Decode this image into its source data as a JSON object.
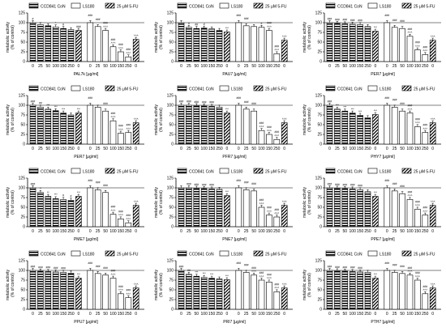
{
  "legend": {
    "items": [
      {
        "label": "CCD841 CoN",
        "pattern": "hstripe"
      },
      {
        "label": "LS180",
        "pattern": "white"
      },
      {
        "label": "25 μM 5-FU",
        "pattern": "diag"
      }
    ]
  },
  "x_ticks": [
    "0",
    "25",
    "50",
    "100",
    "150",
    "250",
    "0",
    "0",
    "25",
    "50",
    "100",
    "150",
    "250",
    "0"
  ],
  "y_ticks": [
    "0",
    "25",
    "50",
    "75",
    "100",
    "125"
  ],
  "ylabel_lines": [
    "metabolic activity",
    "(% of control)"
  ],
  "colors": {
    "ccd_fill": "#d4d4d4",
    "ls_fill": "#ffffff",
    "stroke": "#000000"
  },
  "chart_data": [
    {
      "type": "bar",
      "xlabel": "PAL7k [µg/ml]",
      "ylim": [
        0,
        125
      ],
      "series": [
        {
          "name": "CCD841 CoN",
          "values": [
            100,
            95,
            92,
            89,
            85,
            82
          ]
        },
        {
          "name": "25 μM 5-FU",
          "values": [
            80,
            57
          ]
        },
        {
          "name": "LS180",
          "values": [
            100,
            90,
            80,
            38,
            25,
            12
          ]
        }
      ],
      "marks": [
        [
          "",
          "#"
        ],
        [
          "",
          ""
        ],
        [
          "",
          ""
        ],
        [
          "",
          "*"
        ],
        [
          "",
          "#"
        ],
        [
          "",
          ""
        ],
        [
          "",
          "###"
        ],
        [
          "###",
          ""
        ],
        [
          "###",
          ""
        ],
        [
          "###",
          "˄˄˄"
        ],
        [
          "###",
          "˄˄˄"
        ],
        [
          "###",
          "˄˄˄"
        ],
        [
          "###",
          "˄˄˄"
        ],
        [
          "",
          "˄˄˄"
        ]
      ]
    },
    {
      "type": "bar",
      "xlabel": "PAU7 [µg/ml]",
      "ylim": [
        0,
        125
      ],
      "series": [
        {
          "name": "CCD841 CoN",
          "values": [
            100,
            88,
            85,
            86,
            84,
            80
          ]
        },
        {
          "name": "25 μM 5-FU",
          "values": [
            76,
            55
          ]
        },
        {
          "name": "LS180",
          "values": [
            100,
            92,
            90,
            88,
            80,
            20
          ]
        }
      ],
      "marks": [
        [
          "",
          ""
        ],
        [
          "",
          "#"
        ],
        [
          "",
          "##"
        ],
        [
          "",
          "#"
        ],
        [
          "",
          ""
        ],
        [
          "",
          ""
        ],
        [
          "",
          "***"
        ],
        [
          "###",
          ""
        ],
        [
          "###",
          ""
        ],
        [
          "",
          ""
        ],
        [
          "",
          "#"
        ],
        [
          "###",
          "˄˄˄"
        ],
        [
          "###",
          "˄˄˄"
        ],
        [
          "",
          "˄˄˄"
        ]
      ]
    },
    {
      "type": "bar",
      "xlabel": "PER7 [µg/ml]",
      "ylim": [
        0,
        125
      ],
      "series": [
        {
          "name": "CCD841 CoN",
          "values": [
            100,
            98,
            97,
            96,
            95,
            90
          ]
        },
        {
          "name": "25 μM 5-FU",
          "values": [
            78,
            55
          ]
        },
        {
          "name": "LS180",
          "values": [
            100,
            88,
            85,
            65,
            30,
            18
          ]
        }
      ],
      "marks": [
        [
          "",
          "###"
        ],
        [
          "",
          "###"
        ],
        [
          "",
          "###"
        ],
        [
          "",
          "###"
        ],
        [
          "",
          "###"
        ],
        [
          "",
          ""
        ],
        [
          "",
          "***"
        ],
        [
          "###",
          ""
        ],
        [
          "###",
          ""
        ],
        [
          "###",
          ""
        ],
        [
          "###",
          "˄˄˄"
        ],
        [
          "###",
          "˄˄˄"
        ],
        [
          "###",
          "˄˄˄"
        ],
        [
          "",
          "˄˄˄"
        ]
      ]
    },
    {
      "type": "bar",
      "xlabel": "PER7 [µg/ml]",
      "ylim": [
        0,
        125
      ],
      "series": [
        {
          "name": "CCD841 CoN",
          "values": [
            100,
            95,
            90,
            86,
            80,
            75
          ]
        },
        {
          "name": "25 μM 5-FU",
          "values": [
            80,
            55
          ]
        },
        {
          "name": "LS180",
          "values": [
            100,
            95,
            85,
            60,
            28,
            30
          ]
        }
      ],
      "marks": [
        [
          "",
          "###"
        ],
        [
          "",
          "##"
        ],
        [
          "",
          "***"
        ],
        [
          "",
          "***"
        ],
        [
          "",
          "***"
        ],
        [
          "",
          ""
        ],
        [
          "",
          "***"
        ],
        [
          "###",
          ""
        ],
        [
          "",
          ""
        ],
        [
          "###",
          ""
        ],
        [
          "###",
          "˄˄˄"
        ],
        [
          "###",
          "˄˄˄"
        ],
        [
          "###",
          "˄˄˄"
        ],
        [
          "",
          "˄˄˄"
        ]
      ]
    },
    {
      "type": "bar",
      "xlabel": "PFR7 [µg/ml]",
      "ylim": [
        0,
        125
      ],
      "series": [
        {
          "name": "CCD841 CoN",
          "values": [
            100,
            100,
            99,
            98,
            97,
            95
          ]
        },
        {
          "name": "25 μM 5-FU",
          "values": [
            80,
            55
          ]
        },
        {
          "name": "LS180",
          "values": [
            100,
            90,
            85,
            35,
            25,
            12
          ]
        }
      ],
      "marks": [
        [
          "",
          "###"
        ],
        [
          "",
          "###"
        ],
        [
          "",
          "###"
        ],
        [
          "",
          "###"
        ],
        [
          "",
          "###"
        ],
        [
          "",
          ""
        ],
        [
          "",
          "***"
        ],
        [
          "###",
          ""
        ],
        [
          "###",
          ""
        ],
        [
          "###",
          ""
        ],
        [
          "###",
          "˄˄˄"
        ],
        [
          "###",
          "˄˄˄"
        ],
        [
          "###",
          "˄˄˄"
        ],
        [
          "",
          "˄˄˄"
        ]
      ]
    },
    {
      "type": "bar",
      "xlabel": "PHY7 [µg/ml]",
      "ylim": [
        0,
        125
      ],
      "series": [
        {
          "name": "CCD841 CoN",
          "values": [
            100,
            90,
            85,
            80,
            74,
            68
          ]
        },
        {
          "name": "25 μM 5-FU",
          "values": [
            76,
            55
          ]
        },
        {
          "name": "LS180",
          "values": [
            100,
            95,
            85,
            80,
            45,
            30
          ]
        }
      ],
      "marks": [
        [
          "",
          "###"
        ],
        [
          "",
          "***"
        ],
        [
          "",
          "***"
        ],
        [
          "",
          "***"
        ],
        [
          "",
          "***"
        ],
        [
          "",
          ""
        ],
        [
          "",
          "***"
        ],
        [
          "###",
          ""
        ],
        [
          "###",
          ""
        ],
        [
          "###",
          ""
        ],
        [
          "###",
          "˄˄˄"
        ],
        [
          "###",
          "˄˄˄"
        ],
        [
          "###",
          "˄˄˄"
        ],
        [
          "",
          "˄˄˄"
        ]
      ]
    },
    {
      "type": "bar",
      "xlabel": "PME7 [µg/ml]",
      "ylim": [
        0,
        125
      ],
      "series": [
        {
          "name": "CCD841 CoN",
          "values": [
            100,
            88,
            78,
            72,
            70,
            68
          ]
        },
        {
          "name": "25 μM 5-FU",
          "values": [
            78,
            55
          ]
        },
        {
          "name": "LS180",
          "values": [
            100,
            95,
            88,
            32,
            20,
            10
          ]
        }
      ],
      "marks": [
        [
          "",
          "###"
        ],
        [
          "",
          "**"
        ],
        [
          "",
          "**"
        ],
        [
          "",
          "***"
        ],
        [
          "",
          "#"
        ],
        [
          "",
          "#"
        ],
        [
          "",
          "***"
        ],
        [
          "###",
          ""
        ],
        [
          "###",
          ""
        ],
        [
          "###",
          ""
        ],
        [
          "###",
          "˄˄˄"
        ],
        [
          "###",
          "˄˄˄"
        ],
        [
          "###",
          "˄˄˄"
        ],
        [
          "",
          "˄˄˄"
        ]
      ]
    },
    {
      "type": "bar",
      "xlabel": "PNE7 [µg/ml]",
      "ylim": [
        0,
        125
      ],
      "series": [
        {
          "name": "CCD841 CoN",
          "values": [
            100,
            100,
            99,
            98,
            97,
            96
          ]
        },
        {
          "name": "25 μM 5-FU",
          "values": [
            80,
            55
          ]
        },
        {
          "name": "LS180",
          "values": [
            100,
            95,
            92,
            50,
            30,
            25
          ]
        }
      ],
      "marks": [
        [
          "",
          ""
        ],
        [
          "",
          "###"
        ],
        [
          "",
          "###"
        ],
        [
          "",
          "###"
        ],
        [
          "",
          "###"
        ],
        [
          "",
          ""
        ],
        [
          "",
          "***"
        ],
        [
          "###",
          ""
        ],
        [
          "###",
          ""
        ],
        [
          "###",
          ""
        ],
        [
          "###",
          "˄˄˄"
        ],
        [
          "###",
          "˄˄˄"
        ],
        [
          "###",
          "˄˄˄"
        ],
        [
          "",
          "˄˄˄"
        ]
      ]
    },
    {
      "type": "bar",
      "xlabel": "PPE7 [µg/ml]",
      "ylim": [
        0,
        125
      ],
      "series": [
        {
          "name": "CCD841 CoN",
          "values": [
            100,
            99,
            98,
            97,
            95,
            90
          ]
        },
        {
          "name": "25 μM 5-FU",
          "values": [
            78,
            55
          ]
        },
        {
          "name": "LS180",
          "values": [
            100,
            92,
            85,
            70,
            45,
            30
          ]
        }
      ],
      "marks": [
        [
          "",
          "###"
        ],
        [
          "",
          "###"
        ],
        [
          "",
          "###"
        ],
        [
          "",
          "###"
        ],
        [
          "",
          "###"
        ],
        [
          "",
          ""
        ],
        [
          "",
          "***"
        ],
        [
          "###",
          ""
        ],
        [
          "###",
          ""
        ],
        [
          "###",
          ""
        ],
        [
          "###",
          "˄˄˄"
        ],
        [
          "###",
          "˄˄˄"
        ],
        [
          "###",
          "˄˄˄"
        ],
        [
          "",
          "˄˄˄"
        ]
      ]
    },
    {
      "type": "bar",
      "xlabel": "PPU7 [µg/ml]",
      "ylim": [
        0,
        125
      ],
      "series": [
        {
          "name": "CCD841 CoN",
          "values": [
            100,
            98,
            97,
            96,
            95,
            93
          ]
        },
        {
          "name": "25 μM 5-FU",
          "values": [
            80,
            55
          ]
        },
        {
          "name": "LS180",
          "values": [
            100,
            92,
            88,
            80,
            40,
            30
          ]
        }
      ],
      "marks": [
        [
          "",
          "###"
        ],
        [
          "",
          "###"
        ],
        [
          "",
          "###"
        ],
        [
          "",
          "###"
        ],
        [
          "",
          "###"
        ],
        [
          "",
          ""
        ],
        [
          "",
          "***"
        ],
        [
          "###",
          ""
        ],
        [
          "###",
          ""
        ],
        [
          "###",
          ""
        ],
        [
          "###",
          "˄˄˄"
        ],
        [
          "###",
          "˄˄˄"
        ],
        [
          "###",
          "˄˄˄"
        ],
        [
          "",
          "˄˄˄"
        ]
      ]
    },
    {
      "type": "bar",
      "xlabel": "PRI7 [µg/ml]",
      "ylim": [
        0,
        125
      ],
      "series": [
        {
          "name": "CCD841 CoN",
          "values": [
            100,
            90,
            85,
            82,
            80,
            78
          ]
        },
        {
          "name": "25 μM 5-FU",
          "values": [
            76,
            55
          ]
        },
        {
          "name": "LS180",
          "values": [
            100,
            95,
            88,
            75,
            70,
            45
          ]
        }
      ],
      "marks": [
        [
          "",
          "###"
        ],
        [
          "",
          "##"
        ],
        [
          "",
          "***"
        ],
        [
          "",
          "***"
        ],
        [
          "",
          "***"
        ],
        [
          "",
          ""
        ],
        [
          "",
          "***"
        ],
        [
          "###",
          ""
        ],
        [
          "###",
          ""
        ],
        [
          "###",
          "˄˄˄"
        ],
        [
          "###",
          "˄˄˄"
        ],
        [
          "###",
          "˄˄˄"
        ],
        [
          "###",
          "˄˄˄"
        ],
        [
          "",
          "˄˄˄"
        ]
      ]
    },
    {
      "type": "bar",
      "xlabel": "PTH7 [µg/ml]",
      "ylim": [
        0,
        125
      ],
      "series": [
        {
          "name": "CCD841 CoN",
          "values": [
            100,
            99,
            98,
            97,
            96,
            95
          ]
        },
        {
          "name": "25 μM 5-FU",
          "values": [
            80,
            55
          ]
        },
        {
          "name": "LS180",
          "values": [
            100,
            95,
            92,
            88,
            75,
            40
          ]
        }
      ],
      "marks": [
        [
          "",
          "###"
        ],
        [
          "",
          "###"
        ],
        [
          "",
          "###"
        ],
        [
          "",
          "###"
        ],
        [
          "",
          "###"
        ],
        [
          "",
          ""
        ],
        [
          "",
          "***"
        ],
        [
          "###",
          ""
        ],
        [
          "###",
          ""
        ],
        [
          "###",
          ""
        ],
        [
          "###",
          "˄˄˄"
        ],
        [
          "###",
          "˄˄˄"
        ],
        [
          "###",
          "˄˄˄"
        ],
        [
          "",
          "˄˄˄"
        ]
      ]
    }
  ]
}
